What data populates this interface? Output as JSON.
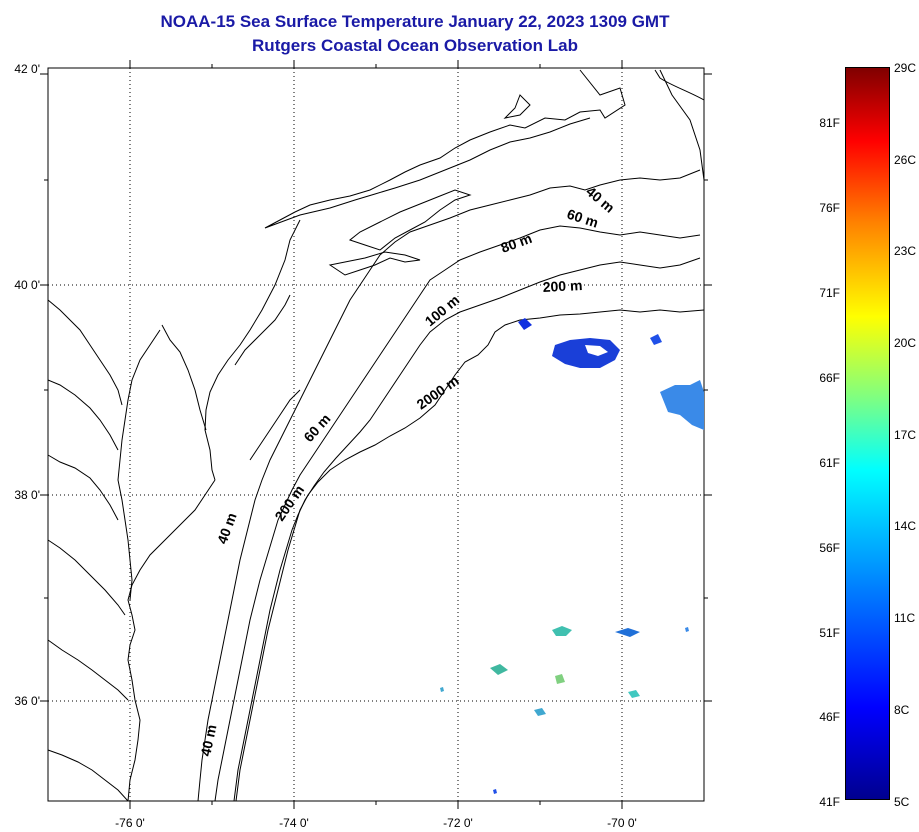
{
  "title_line1": "NOAA-15 Sea Surface Temperature January 22, 2023 1309 GMT",
  "title_line2": "Rutgers Coastal Ocean Observation Lab",
  "lat_labels": [
    "42 0'",
    "40 0'",
    "38 0'",
    "36 0'"
  ],
  "lon_labels": [
    "-76 0'",
    "-74 0'",
    "-72 0'",
    "-70 0'"
  ],
  "depth_labels": {
    "d1": "40 m",
    "d2": "60 m",
    "d3": "80 m",
    "d4": "200 m",
    "d5": "100 m",
    "d6": "2000 m",
    "d7": "60 m",
    "d8": "200 m",
    "d9": "40 m",
    "d10": "40 m"
  },
  "colorbar": {
    "fahrenheit": [
      "81F",
      "76F",
      "71F",
      "66F",
      "61F",
      "56F",
      "51F",
      "46F",
      "41F"
    ],
    "celsius": [
      "29C",
      "26C",
      "23C",
      "20C",
      "17C",
      "14C",
      "11C",
      "8C",
      "5C"
    ],
    "colors": [
      "#00008f",
      "#0000ff",
      "#0080ff",
      "#00ffff",
      "#80ff80",
      "#ffff00",
      "#ff8000",
      "#ff0000",
      "#800000"
    ]
  }
}
